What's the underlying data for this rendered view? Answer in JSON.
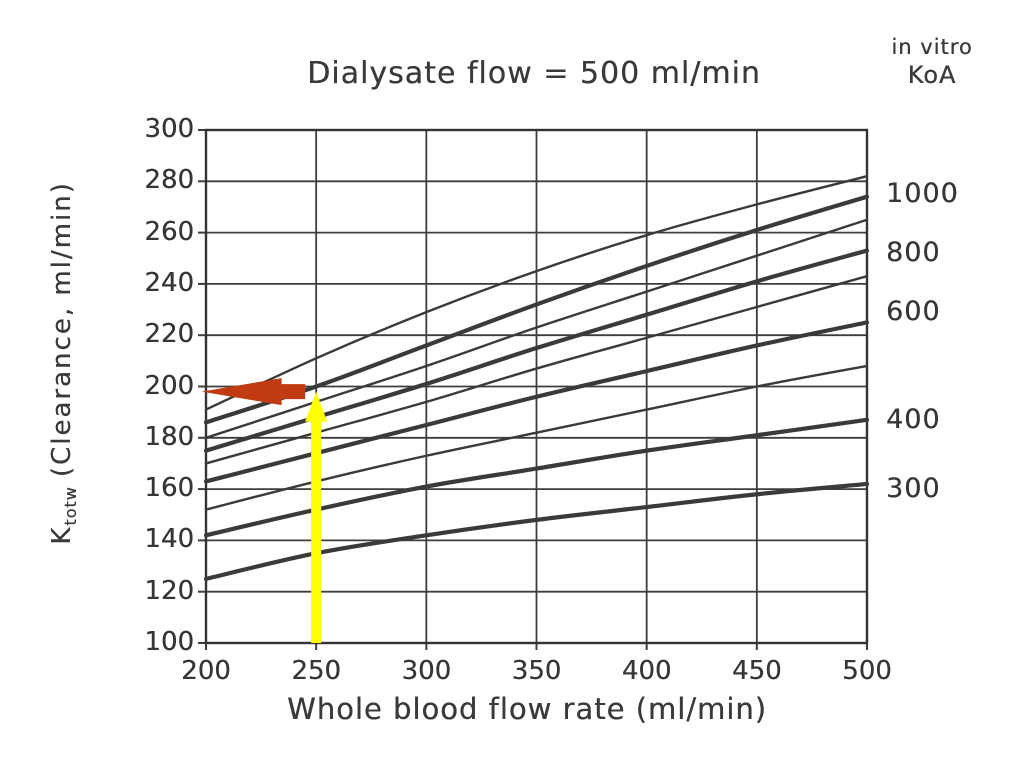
{
  "title": "Dialysate flow = 500 ml/min",
  "right_header": {
    "line1": "in vitro",
    "line2": "KoA"
  },
  "ylabel": {
    "symbol": "K",
    "subscript": "totw",
    "rest": "(Clearance, ml/min)"
  },
  "colors": {
    "ink": "#3a3a3a",
    "grid": "#3d3d3d",
    "arrow_yellow": "#ffff00",
    "arrow_red": "#c03a12"
  },
  "chart_data": {
    "type": "line",
    "title": "Dialysate flow = 500 ml/min",
    "xlabel": "Whole blood flow rate (ml/min)",
    "ylabel": "Ktotw (Clearance, ml/min)",
    "right_axis_header": "in vitro KoA",
    "xlim": [
      200,
      500
    ],
    "ylim": [
      100,
      300
    ],
    "x_ticks": [
      200,
      250,
      300,
      350,
      400,
      450,
      500
    ],
    "y_ticks": [
      100,
      120,
      140,
      160,
      180,
      200,
      220,
      240,
      260,
      280,
      300
    ],
    "grid": true,
    "legend_position": "right",
    "x": [
      200,
      250,
      300,
      350,
      400,
      450,
      500
    ],
    "series": [
      {
        "koa": "",
        "emphasis": false,
        "values": [
          191,
          211,
          229,
          245,
          259,
          271,
          282
        ]
      },
      {
        "koa": "1000",
        "emphasis": true,
        "label_y": 275,
        "values": [
          186,
          200,
          216,
          232,
          247,
          261,
          274
        ]
      },
      {
        "koa": "",
        "emphasis": false,
        "values": [
          180,
          194,
          208,
          223,
          237,
          251,
          265
        ]
      },
      {
        "koa": "800",
        "emphasis": true,
        "label_y": 252,
        "values": [
          175,
          188,
          201,
          215,
          228,
          241,
          253
        ]
      },
      {
        "koa": "",
        "emphasis": false,
        "values": [
          170,
          182,
          194,
          207,
          219,
          231,
          243
        ]
      },
      {
        "koa": "600",
        "emphasis": true,
        "label_y": 229,
        "values": [
          163,
          174,
          185,
          196,
          206,
          216,
          225
        ]
      },
      {
        "koa": "",
        "emphasis": false,
        "values": [
          152,
          163,
          173,
          182,
          191,
          200,
          208
        ]
      },
      {
        "koa": "400",
        "emphasis": true,
        "label_y": 187,
        "values": [
          142,
          152,
          161,
          168,
          175,
          181,
          187
        ]
      },
      {
        "koa": "300",
        "emphasis": true,
        "label_y": 160,
        "values": [
          125,
          135,
          142,
          148,
          153,
          158,
          162
        ]
      }
    ],
    "annotations": [
      {
        "name": "yellow-up-arrow",
        "shape": "up",
        "color": "#ffff00",
        "x": 250,
        "y_from": 100,
        "y_to": 198
      },
      {
        "name": "red-left-arrow",
        "shape": "left",
        "color": "#c03a12",
        "y": 198,
        "x_from": 245,
        "x_to": 198
      }
    ]
  }
}
